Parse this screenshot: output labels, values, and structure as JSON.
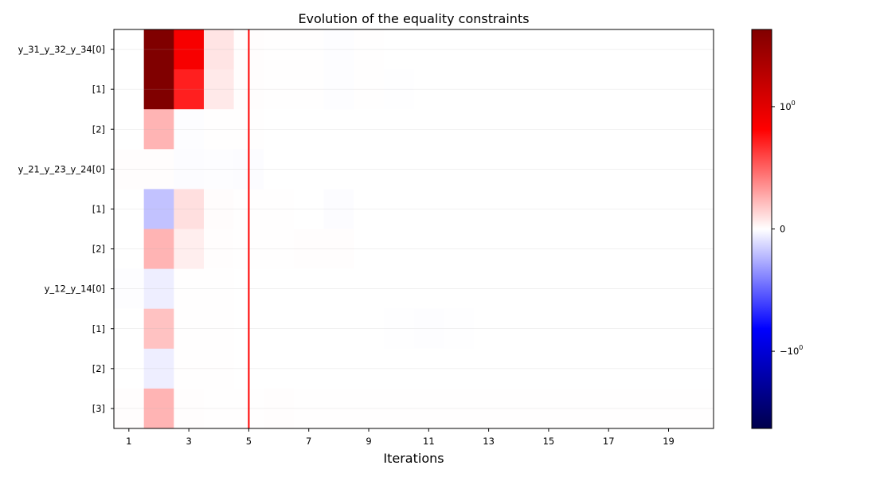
{
  "chart_data": {
    "type": "heatmap",
    "title": "Evolution of the equality constraints",
    "xlabel": "Iterations",
    "ylabel": "",
    "x": [
      1,
      2,
      3,
      4,
      5,
      6,
      7,
      8,
      9,
      10,
      11,
      12,
      13,
      14,
      15,
      16,
      17,
      18,
      19,
      20
    ],
    "x_tick_labels": [
      "1",
      "3",
      "5",
      "7",
      "9",
      "11",
      "13",
      "15",
      "17",
      "19"
    ],
    "x_tick_values": [
      1,
      3,
      5,
      7,
      9,
      11,
      13,
      15,
      17,
      19
    ],
    "rows": [
      "y_31_y_32_y_34[0]",
      "[1]",
      "[2]",
      "y_21_y_23_y_24[0]",
      "[1]",
      "[2]",
      "y_12_y_14[0]",
      "[1]",
      "[2]",
      "[3]"
    ],
    "values": [
      [
        0.0,
        3.0,
        0.8,
        0.05,
        0.004,
        0.002,
        0.001,
        -0.003,
        0.001,
        0.0005,
        0.0005,
        0.0,
        0.0,
        0.0,
        0.0,
        0.0,
        0.0,
        0.0,
        0.0,
        0.0
      ],
      [
        0.0,
        3.0,
        0.6,
        0.04,
        0.003,
        0.002,
        0.001,
        -0.003,
        0.001,
        -0.002,
        0.0005,
        0.0,
        0.0,
        0.0,
        0.0,
        0.0,
        0.0,
        0.0,
        0.0,
        0.0
      ],
      [
        0.0,
        0.15,
        -0.004,
        0.002,
        0.001,
        0.0,
        0.0,
        0.0,
        0.0,
        0.0,
        0.0,
        0.0,
        0.0,
        0.0,
        0.0,
        0.0,
        0.0,
        0.0,
        0.0,
        0.0
      ],
      [
        0.003,
        0.003,
        -0.006,
        -0.004,
        -0.006,
        0.0,
        0.0,
        0.0,
        0.0,
        0.0,
        0.0,
        0.0,
        0.0,
        0.0,
        0.0,
        0.0,
        0.0,
        0.0,
        0.0,
        0.0
      ],
      [
        0.0,
        -0.12,
        0.06,
        0.005,
        0.002,
        0.001,
        0.0,
        -0.006,
        0.0,
        0.0,
        0.0,
        0.0,
        0.0,
        0.0,
        0.0,
        0.0,
        0.0,
        0.0,
        0.0,
        0.0
      ],
      [
        0.0,
        0.15,
        0.03,
        0.003,
        0.002,
        0.001,
        0.004,
        0.003,
        0.0,
        0.0,
        0.0,
        0.0,
        0.0,
        0.0,
        0.0,
        0.0,
        0.0,
        0.0,
        0.0,
        0.0
      ],
      [
        -0.004,
        -0.03,
        0.002,
        0.001,
        0.0,
        0.0,
        0.0,
        0.0,
        0.0,
        0.0,
        0.0,
        0.0,
        0.0,
        0.0,
        0.0,
        0.0,
        0.0,
        0.0,
        0.0,
        0.0
      ],
      [
        0.0,
        0.12,
        0.002,
        0.001,
        0.0,
        0.0,
        0.0,
        0.0,
        0.0,
        -0.002,
        -0.003,
        -0.002,
        0.0,
        0.0,
        0.0,
        0.0,
        0.0,
        0.0,
        0.0,
        0.0
      ],
      [
        0.0,
        -0.03,
        0.002,
        0.001,
        0.0,
        0.0,
        0.0,
        0.0,
        0.0,
        0.0,
        0.0,
        0.0,
        0.0,
        0.0,
        0.0,
        0.0,
        0.0,
        0.0,
        0.0,
        0.0
      ],
      [
        0.003,
        0.15,
        0.003,
        0.002,
        0.002,
        0.003,
        0.001,
        0.002,
        0.002,
        0.002,
        0.002,
        0.002,
        0.002,
        0.002,
        0.002,
        0.002,
        0.002,
        0.002,
        0.002,
        0.002
      ]
    ],
    "color_scale": "symlog",
    "colormap": "seismic",
    "vmin": -2.5,
    "vmax": 2.5,
    "linthresh": 0.5,
    "colorbar_ticks": [
      {
        "value": 1,
        "label": "10",
        "exp": "0"
      },
      {
        "value": 0,
        "label": "0",
        "exp": ""
      },
      {
        "value": -1,
        "label": "−10",
        "exp": "0"
      }
    ],
    "vline": {
      "x": 5,
      "color": "#ff0000"
    },
    "grid": true,
    "legend": "none"
  }
}
